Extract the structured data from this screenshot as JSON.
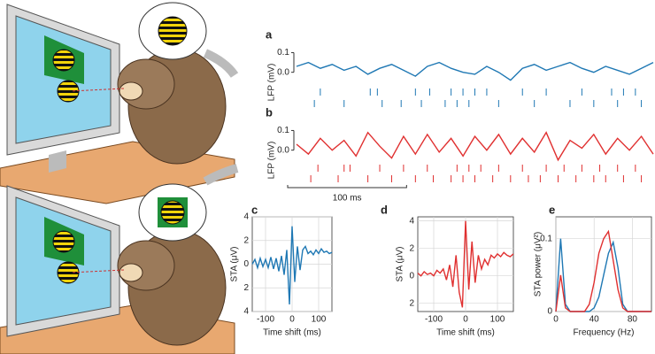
{
  "chart_data": [
    {
      "type": "line",
      "label": "a",
      "y_label": "LFP (mV)",
      "frame": false,
      "grid": false,
      "xlim": [
        0,
        300
      ],
      "ylim": [
        -0.06,
        0.12
      ],
      "yticks": [
        {
          "value": 0.1,
          "label": "0.1"
        },
        {
          "value": 0,
          "label": "0.0"
        }
      ],
      "x": [
        0,
        10,
        20,
        30,
        40,
        50,
        60,
        70,
        80,
        90,
        100,
        110,
        120,
        130,
        140,
        150,
        160,
        170,
        180,
        190,
        200,
        210,
        220,
        230,
        240,
        250,
        260,
        270,
        280,
        290,
        300
      ],
      "series": [
        {
          "color": "#1f78b4",
          "values": [
            0.03,
            0.05,
            0.02,
            0.04,
            0.01,
            0.03,
            -0.01,
            0.02,
            0.04,
            0.01,
            -0.02,
            0.03,
            0.05,
            0.02,
            0.0,
            -0.01,
            0.03,
            0.0,
            -0.04,
            0.02,
            0.04,
            0.01,
            0.03,
            0.05,
            0.02,
            0.0,
            0.03,
            0.01,
            -0.01,
            0.02,
            0.05
          ]
        }
      ],
      "spikes": [
        [
          20,
          62,
          68,
          100,
          112,
          130,
          140,
          150,
          160,
          190,
          210,
          240,
          265,
          275,
          285
        ],
        [
          15,
          40,
          72,
          88,
          105,
          125,
          135,
          145,
          170,
          200,
          230,
          250,
          270,
          290
        ]
      ]
    },
    {
      "type": "line",
      "label": "b",
      "y_label": "LFP (mV)",
      "frame": false,
      "grid": false,
      "xlim": [
        0,
        300
      ],
      "ylim": [
        -0.06,
        0.12
      ],
      "yticks": [
        {
          "value": 0.1,
          "label": "0.1"
        },
        {
          "value": 0,
          "label": "0.0"
        }
      ],
      "x": [
        0,
        10,
        20,
        30,
        40,
        50,
        60,
        70,
        80,
        90,
        100,
        110,
        120,
        130,
        140,
        150,
        160,
        170,
        180,
        190,
        200,
        210,
        220,
        230,
        240,
        250,
        260,
        270,
        280,
        290,
        300
      ],
      "series": [
        {
          "color": "#e03030",
          "values": [
            0.03,
            -0.02,
            0.06,
            0.0,
            0.05,
            -0.03,
            0.09,
            0.02,
            -0.04,
            0.07,
            -0.02,
            0.08,
            -0.01,
            0.06,
            -0.03,
            0.07,
            0.0,
            0.08,
            -0.02,
            0.06,
            -0.01,
            0.09,
            -0.05,
            0.05,
            0.01,
            0.08,
            -0.02,
            0.06,
            0.0,
            0.07,
            -0.02
          ]
        }
      ],
      "spikes": [
        [
          18,
          40,
          45,
          70,
          90,
          110,
          135,
          145,
          155,
          170,
          190,
          210,
          225,
          240,
          255,
          270,
          285
        ],
        [
          12,
          35,
          60,
          80,
          100,
          115,
          130,
          140,
          150,
          165,
          180,
          195,
          205,
          220,
          235,
          250,
          260,
          275,
          290
        ]
      ],
      "scalebar": {
        "value": 100,
        "label": "100 ms"
      }
    },
    {
      "type": "line",
      "label": "c",
      "y_label": "STA (μV)",
      "x_label": "Time shift (ms)",
      "frame": true,
      "grid": true,
      "xlim": [
        -150,
        150
      ],
      "ylim": [
        -4,
        4
      ],
      "xticks": [
        -100,
        0,
        100
      ],
      "yticks": [
        4,
        {
          "value": 2,
          "label": "2"
        },
        0,
        {
          "value": -2,
          "label": "2"
        },
        {
          "value": -4,
          "label": "4"
        }
      ],
      "x": [
        -150,
        -140,
        -130,
        -120,
        -110,
        -100,
        -90,
        -80,
        -70,
        -60,
        -50,
        -40,
        -30,
        -20,
        -10,
        0,
        10,
        20,
        30,
        40,
        50,
        60,
        70,
        80,
        90,
        100,
        110,
        120,
        130,
        140,
        150
      ],
      "series": [
        {
          "color": "#1f78b4",
          "values": [
            0,
            0.4,
            -0.3,
            0.5,
            -0.2,
            0.4,
            -0.3,
            0.6,
            -0.4,
            0.5,
            -0.6,
            0.7,
            -0.9,
            1.2,
            -3.4,
            3.2,
            -1.5,
            1.5,
            -0.5,
            1.2,
            1.5,
            0.9,
            1.1,
            0.8,
            1.2,
            0.9,
            1.3,
            1.0,
            1.1,
            0.9,
            1.0
          ]
        }
      ]
    },
    {
      "type": "line",
      "label": "d",
      "y_label": "STA (μV)",
      "x_label": "Time shift (ms)",
      "frame": true,
      "grid": true,
      "xlim": [
        -150,
        150
      ],
      "ylim": [
        -2.6,
        4.3
      ],
      "xticks": [
        -100,
        0,
        100
      ],
      "yticks": [
        4,
        2,
        0,
        {
          "value": -2,
          "label": "2"
        }
      ],
      "x": [
        -150,
        -140,
        -130,
        -120,
        -110,
        -100,
        -90,
        -80,
        -70,
        -60,
        -50,
        -40,
        -30,
        -20,
        -10,
        0,
        10,
        20,
        30,
        40,
        50,
        60,
        70,
        80,
        90,
        100,
        110,
        120,
        130,
        140,
        150
      ],
      "series": [
        {
          "color": "#e03030",
          "values": [
            0.2,
            0.0,
            0.3,
            0.1,
            0.2,
            0.0,
            0.4,
            0.2,
            0.5,
            -0.3,
            0.8,
            -0.8,
            1.5,
            -1.2,
            -2.3,
            4.0,
            -1.0,
            2.5,
            -0.5,
            1.5,
            0.5,
            1.2,
            0.8,
            1.5,
            1.3,
            1.6,
            1.4,
            1.7,
            1.5,
            1.4,
            1.6
          ]
        }
      ]
    },
    {
      "type": "line",
      "label": "e",
      "y_label": "STA power (μV²)",
      "x_label": "Frequency (Hz)",
      "frame": true,
      "grid": true,
      "xlim": [
        0,
        100
      ],
      "ylim": [
        0,
        0.13
      ],
      "xticks": [
        0,
        40,
        80
      ],
      "yticks": [
        0,
        0.1
      ],
      "x": [
        0,
        5,
        10,
        15,
        20,
        25,
        30,
        35,
        40,
        45,
        50,
        55,
        60,
        65,
        70,
        75,
        80,
        85,
        90,
        95,
        100
      ],
      "series": [
        {
          "color": "#1f78b4",
          "values": [
            0,
            0.1,
            0.01,
            0,
            0,
            0,
            0,
            0,
            0.005,
            0.02,
            0.05,
            0.08,
            0.095,
            0.06,
            0.01,
            0,
            0,
            0,
            0,
            0,
            0
          ]
        },
        {
          "color": "#e03030",
          "values": [
            0,
            0.05,
            0.005,
            0,
            0,
            0,
            0,
            0.01,
            0.04,
            0.08,
            0.1,
            0.11,
            0.07,
            0.03,
            0.005,
            0,
            0,
            0,
            0,
            0,
            0
          ]
        }
      ]
    }
  ]
}
